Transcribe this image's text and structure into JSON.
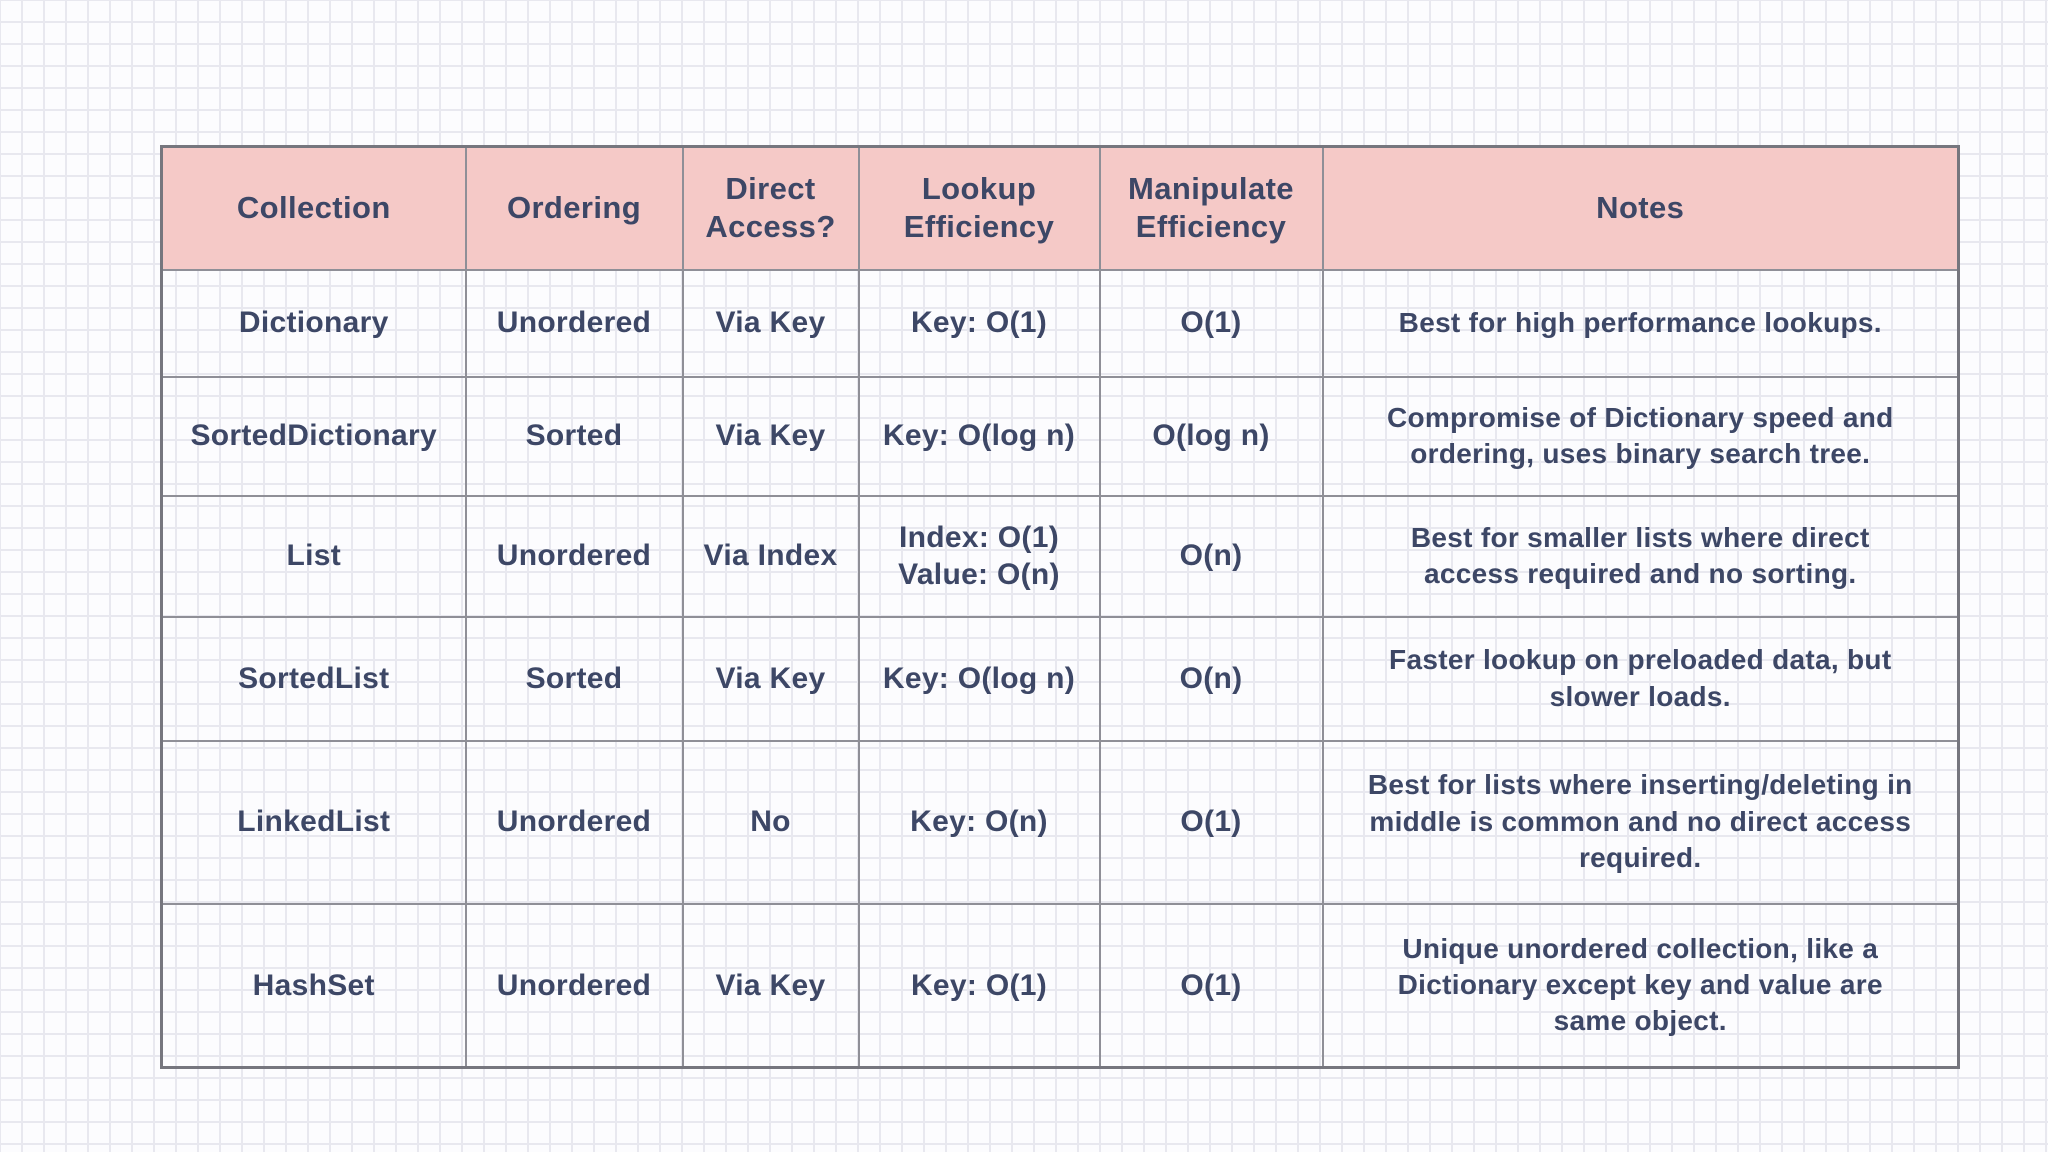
{
  "colors": {
    "header_background": "#f5c9c7",
    "text": "#3d4766",
    "outer_border": "#76767e",
    "inner_border": "#8f8f97",
    "grid_line": "#e8e8ef",
    "page_background": "#fcfcfe"
  },
  "table": {
    "headers": [
      "Collection",
      "Ordering",
      "Direct\nAccess?",
      "Lookup\nEfficiency",
      "Manipulate\nEfficiency",
      "Notes"
    ],
    "rows": [
      {
        "collection": "Dictionary",
        "ordering": "Unordered",
        "direct_access": "Via Key",
        "lookup": "Key: O(1)",
        "manipulate": "O(1)",
        "notes": "Best for high performance lookups."
      },
      {
        "collection": "SortedDictionary",
        "ordering": "Sorted",
        "direct_access": "Via Key",
        "lookup": "Key: O(log n)",
        "manipulate": "O(log n)",
        "notes": "Compromise of Dictionary speed and\nordering, uses binary search tree."
      },
      {
        "collection": "List",
        "ordering": "Unordered",
        "direct_access": "Via Index",
        "lookup": "Index: O(1)\nValue: O(n)",
        "manipulate": "O(n)",
        "notes": "Best for smaller lists where direct\naccess required and no sorting."
      },
      {
        "collection": "SortedList",
        "ordering": "Sorted",
        "direct_access": "Via Key",
        "lookup": "Key: O(log n)",
        "manipulate": "O(n)",
        "notes": "Faster lookup on preloaded data, but\nslower loads."
      },
      {
        "collection": "LinkedList",
        "ordering": "Unordered",
        "direct_access": "No",
        "lookup": "Key: O(n)",
        "manipulate": "O(1)",
        "notes": "Best for lists where inserting/deleting in\nmiddle is common and no direct access\nrequired."
      },
      {
        "collection": "HashSet",
        "ordering": "Unordered",
        "direct_access": "Via Key",
        "lookup": "Key: O(1)",
        "manipulate": "O(1)",
        "notes": "Unique unordered collection, like a\nDictionary except key and value are\nsame object."
      }
    ]
  }
}
